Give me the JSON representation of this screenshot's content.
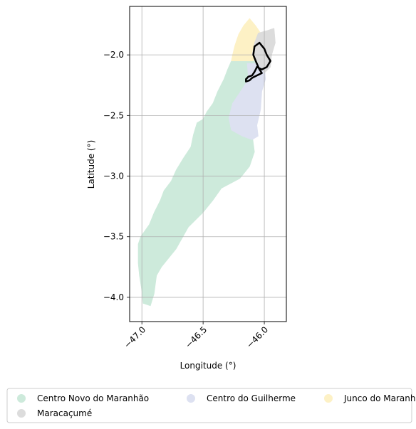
{
  "chart_data": {
    "type": "map",
    "xlabel": "Longitude (°)",
    "ylabel": "Latitude (°)",
    "xlim": [
      -47.1,
      -45.82
    ],
    "ylim": [
      -4.2,
      -1.6
    ],
    "xticks": [
      {
        "value": -47.0,
        "label": "−47.0"
      },
      {
        "value": -46.5,
        "label": "−46.5"
      },
      {
        "value": -46.0,
        "label": "−46.0"
      }
    ],
    "yticks": [
      {
        "value": -2.0,
        "label": "−2.0"
      },
      {
        "value": -2.5,
        "label": "−2.5"
      },
      {
        "value": -3.0,
        "label": "−3.0"
      },
      {
        "value": -3.5,
        "label": "−3.5"
      },
      {
        "value": -4.0,
        "label": "−4.0"
      }
    ],
    "grid": true,
    "legend_position": "bottom",
    "regions": [
      {
        "name": "Centro Novo do Maranhão",
        "color": "#cdeadb",
        "polygon": [
          [
            -46.27,
            -2.05
          ],
          [
            -46.02,
            -2.05
          ],
          [
            -46.05,
            -2.3
          ],
          [
            -46.09,
            -2.55
          ],
          [
            -46.1,
            -2.65
          ],
          [
            -46.08,
            -2.8
          ],
          [
            -46.12,
            -2.92
          ],
          [
            -46.2,
            -3.02
          ],
          [
            -46.35,
            -3.1
          ],
          [
            -46.42,
            -3.2
          ],
          [
            -46.5,
            -3.3
          ],
          [
            -46.62,
            -3.42
          ],
          [
            -46.72,
            -3.6
          ],
          [
            -46.84,
            -3.75
          ],
          [
            -46.88,
            -3.82
          ],
          [
            -46.9,
            -3.97
          ],
          [
            -46.93,
            -4.07
          ],
          [
            -46.99,
            -4.05
          ],
          [
            -47.0,
            -3.95
          ],
          [
            -47.02,
            -3.82
          ],
          [
            -47.03,
            -3.72
          ],
          [
            -47.03,
            -3.56
          ],
          [
            -47.01,
            -3.5
          ],
          [
            -46.94,
            -3.4
          ],
          [
            -46.9,
            -3.3
          ],
          [
            -46.85,
            -3.2
          ],
          [
            -46.82,
            -3.12
          ],
          [
            -46.76,
            -3.04
          ],
          [
            -46.72,
            -2.95
          ],
          [
            -46.66,
            -2.85
          ],
          [
            -46.6,
            -2.76
          ],
          [
            -46.58,
            -2.66
          ],
          [
            -46.55,
            -2.56
          ],
          [
            -46.5,
            -2.53
          ],
          [
            -46.47,
            -2.47
          ],
          [
            -46.42,
            -2.4
          ],
          [
            -46.38,
            -2.3
          ],
          [
            -46.33,
            -2.2
          ],
          [
            -46.3,
            -2.12
          ]
        ]
      },
      {
        "name": "Centro do Guilherme",
        "color": "#dde1f1",
        "polygon": [
          [
            -46.14,
            -2.07
          ],
          [
            -46.0,
            -2.07
          ],
          [
            -45.99,
            -2.2
          ],
          [
            -46.02,
            -2.3
          ],
          [
            -46.03,
            -2.45
          ],
          [
            -46.06,
            -2.58
          ],
          [
            -46.05,
            -2.67
          ],
          [
            -46.1,
            -2.7
          ],
          [
            -46.18,
            -2.67
          ],
          [
            -46.27,
            -2.62
          ],
          [
            -46.29,
            -2.52
          ],
          [
            -46.26,
            -2.4
          ],
          [
            -46.18,
            -2.28
          ],
          [
            -46.13,
            -2.2
          ]
        ]
      },
      {
        "name": "Junco do Maranhão",
        "color": "#fdf1c5",
        "polygon": [
          [
            -46.27,
            -2.05
          ],
          [
            -46.09,
            -2.05
          ],
          [
            -46.04,
            -1.92
          ],
          [
            -46.03,
            -1.82
          ],
          [
            -46.07,
            -1.76
          ],
          [
            -46.12,
            -1.7
          ],
          [
            -46.17,
            -1.76
          ],
          [
            -46.21,
            -1.83
          ],
          [
            -46.24,
            -1.92
          ],
          [
            -46.26,
            -2.0
          ]
        ]
      },
      {
        "name": "Maracaçumé",
        "color": "#dcdcdc",
        "polygon": [
          [
            -46.05,
            -1.82
          ],
          [
            -45.98,
            -1.8
          ],
          [
            -45.92,
            -1.78
          ],
          [
            -45.91,
            -1.9
          ],
          [
            -45.94,
            -2.0
          ],
          [
            -45.95,
            -2.1
          ],
          [
            -46.0,
            -2.15
          ],
          [
            -46.04,
            -2.08
          ],
          [
            -46.1,
            -2.0
          ],
          [
            -46.08,
            -1.9
          ]
        ]
      }
    ],
    "highlight_outline": {
      "polygon": [
        [
          -46.08,
          -1.93
        ],
        [
          -46.04,
          -1.9
        ],
        [
          -46.0,
          -1.95
        ],
        [
          -45.98,
          -2.0
        ],
        [
          -45.95,
          -2.05
        ],
        [
          -45.98,
          -2.1
        ],
        [
          -46.02,
          -2.12
        ],
        [
          -46.06,
          -2.1
        ],
        [
          -46.08,
          -2.14
        ],
        [
          -46.1,
          -2.17
        ],
        [
          -46.13,
          -2.18
        ],
        [
          -46.15,
          -2.2
        ],
        [
          -46.15,
          -2.22
        ],
        [
          -46.12,
          -2.21
        ],
        [
          -46.1,
          -2.19
        ],
        [
          -46.08,
          -2.18
        ],
        [
          -46.04,
          -2.16
        ],
        [
          -46.02,
          -2.15
        ],
        [
          -46.04,
          -2.12
        ],
        [
          -46.07,
          -2.05
        ],
        [
          -46.09,
          -2.0
        ]
      ],
      "color": "#000000"
    }
  },
  "legend": {
    "items": [
      {
        "label": "Centro Novo do Maranhão",
        "color": "#cdeadb"
      },
      {
        "label": "Centro do Guilherme",
        "color": "#dde1f1"
      },
      {
        "label": "Junco do Maranhão",
        "color": "#fdf1c5"
      },
      {
        "label": "Maracaçumé",
        "color": "#dcdcdc"
      }
    ]
  }
}
